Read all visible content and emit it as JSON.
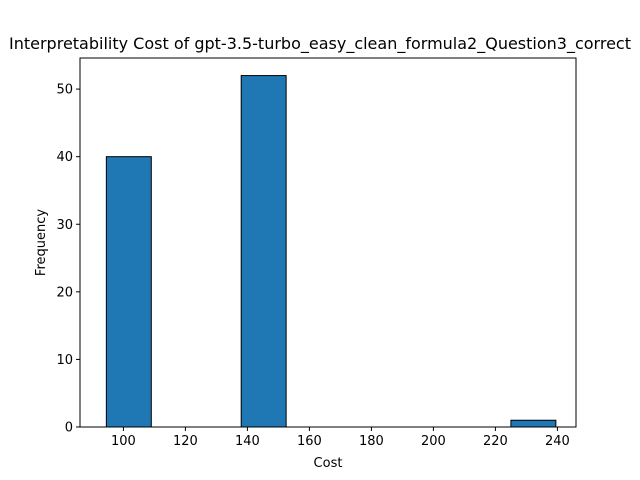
{
  "chart_data": {
    "type": "bar",
    "title": "Interpretability Cost of gpt-3.5-turbo_easy_clean_formula2_Question3_correct",
    "xlabel": "Cost",
    "ylabel": "Frequency",
    "xlim": [
      86,
      246
    ],
    "ylim": [
      0,
      54.6
    ],
    "xticks": [
      100,
      120,
      140,
      160,
      180,
      200,
      220,
      240
    ],
    "yticks": [
      0,
      10,
      20,
      30,
      40,
      50
    ],
    "bar_color": "#1f77b4",
    "edge_color": "#000000",
    "grid": false,
    "bins": [
      {
        "start": 94.5,
        "end": 109.0,
        "value": 40
      },
      {
        "start": 109.0,
        "end": 123.5,
        "value": 0
      },
      {
        "start": 123.5,
        "end": 138.0,
        "value": 0
      },
      {
        "start": 138.0,
        "end": 152.5,
        "value": 52
      },
      {
        "start": 152.5,
        "end": 167.0,
        "value": 0
      },
      {
        "start": 167.0,
        "end": 181.5,
        "value": 0
      },
      {
        "start": 181.5,
        "end": 196.0,
        "value": 0
      },
      {
        "start": 196.0,
        "end": 210.5,
        "value": 0
      },
      {
        "start": 210.5,
        "end": 225.0,
        "value": 0
      },
      {
        "start": 225.0,
        "end": 239.5,
        "value": 1
      }
    ]
  }
}
